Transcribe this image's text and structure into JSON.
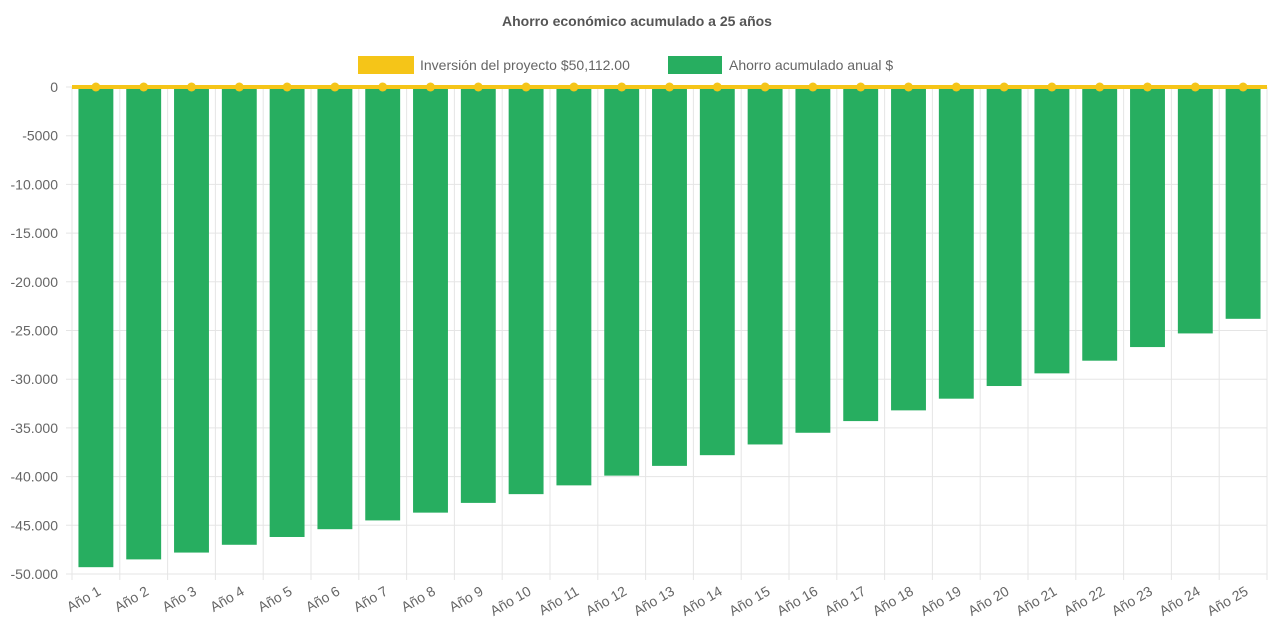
{
  "chart_data": {
    "type": "bar",
    "title": "Ahorro económico acumulado a 25 años",
    "legend_position": "top",
    "grid": true,
    "categories": [
      "Año 1",
      "Año 2",
      "Año 3",
      "Año 4",
      "Año 5",
      "Año 6",
      "Año 7",
      "Año 8",
      "Año 9",
      "Año 10",
      "Año 11",
      "Año 12",
      "Año 13",
      "Año 14",
      "Año 15",
      "Año 16",
      "Año 17",
      "Año 18",
      "Año 19",
      "Año 20",
      "Año 21",
      "Año 22",
      "Año 23",
      "Año 24",
      "Año 25"
    ],
    "ylim": [
      -50000,
      0
    ],
    "yticks": [
      {
        "value": 0,
        "label": "0"
      },
      {
        "value": -5000,
        "label": "-5000"
      },
      {
        "value": -10000,
        "label": "-10.000"
      },
      {
        "value": -15000,
        "label": "-15.000"
      },
      {
        "value": -20000,
        "label": "-20.000"
      },
      {
        "value": -25000,
        "label": "-25.000"
      },
      {
        "value": -30000,
        "label": "-30.000"
      },
      {
        "value": -35000,
        "label": "-35.000"
      },
      {
        "value": -40000,
        "label": "-40.000"
      },
      {
        "value": -45000,
        "label": "-45.000"
      },
      {
        "value": -50000,
        "label": "-50.000"
      }
    ],
    "series": [
      {
        "name": "Inversión del proyecto $50,112.00",
        "type": "line",
        "color": "#f5c518",
        "values": [
          0,
          0,
          0,
          0,
          0,
          0,
          0,
          0,
          0,
          0,
          0,
          0,
          0,
          0,
          0,
          0,
          0,
          0,
          0,
          0,
          0,
          0,
          0,
          0,
          0
        ]
      },
      {
        "name": "Ahorro acumulado anual $",
        "type": "bar",
        "color": "#27ae60",
        "values": [
          -49300,
          -48500,
          -47800,
          -47000,
          -46200,
          -45400,
          -44500,
          -43700,
          -42700,
          -41800,
          -40900,
          -39900,
          -38900,
          -37800,
          -36700,
          -35500,
          -34300,
          -33200,
          -32000,
          -30700,
          -29400,
          -28100,
          -26700,
          -25300,
          -23800
        ]
      }
    ]
  }
}
